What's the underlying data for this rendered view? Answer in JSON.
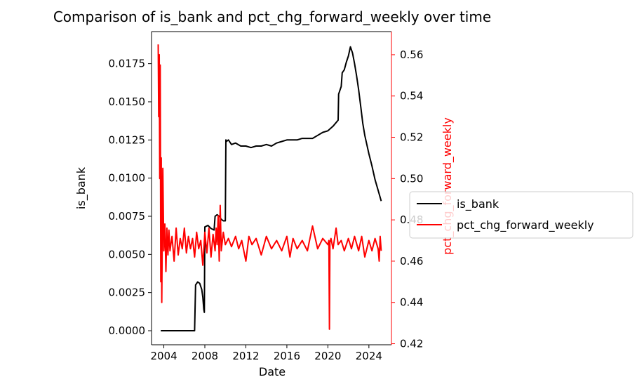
{
  "chart_data": {
    "type": "line",
    "title": "Comparison of is_bank and pct_chg_forward_weekly over time",
    "xlabel": "Date",
    "ylabel_left": "is_bank",
    "ylabel_right": "pct_chg_forward_weekly",
    "xlim": [
      2002.8,
      2026.2
    ],
    "ylim_left": [
      -0.00092,
      0.0196
    ],
    "ylim_right": [
      0.4195,
      0.5712
    ],
    "x_ticks": [
      "2004",
      "2008",
      "2012",
      "2016",
      "2020",
      "2024"
    ],
    "x_tick_values": [
      2004,
      2008,
      2012,
      2016,
      2020,
      2024
    ],
    "y_left_ticks": [
      "0.0000",
      "0.0025",
      "0.0050",
      "0.0075",
      "0.0100",
      "0.0125",
      "0.0150",
      "0.0175"
    ],
    "y_left_tick_values": [
      0,
      0.0025,
      0.005,
      0.0075,
      0.01,
      0.0125,
      0.015,
      0.0175
    ],
    "y_right_ticks": [
      "0.42",
      "0.44",
      "0.46",
      "0.48",
      "0.50",
      "0.52",
      "0.54",
      "0.56"
    ],
    "y_right_tick_values": [
      0.42,
      0.44,
      0.46,
      0.48,
      0.5,
      0.52,
      0.54,
      0.56
    ],
    "grid": false,
    "legend_position": "right-outside",
    "series": [
      {
        "name": "is_bank",
        "axis": "left",
        "color": "#000000",
        "x": [
          2003.7,
          2004.5,
          2005.5,
          2006.5,
          2007.0,
          2007.1,
          2007.3,
          2007.5,
          2007.7,
          2007.8,
          2007.9,
          2007.95,
          2008.0,
          2008.3,
          2008.6,
          2008.9,
          2009.0,
          2009.2,
          2009.4,
          2009.6,
          2009.8,
          2010.0,
          2010.05,
          2010.1,
          2010.3,
          2010.6,
          2011.0,
          2011.5,
          2012.0,
          2012.5,
          2013.0,
          2013.5,
          2014.0,
          2014.5,
          2015.0,
          2015.5,
          2016.0,
          2016.5,
          2017.0,
          2017.5,
          2018.0,
          2018.5,
          2019.0,
          2019.5,
          2020.0,
          2020.5,
          2021.0,
          2021.05,
          2021.2,
          2021.3,
          2021.4,
          2021.6,
          2021.8,
          2022.0,
          2022.2,
          2022.4,
          2022.6,
          2022.8,
          2023.0,
          2023.2,
          2023.4,
          2023.6,
          2023.8,
          2024.0,
          2024.3,
          2024.6,
          2024.9,
          2025.2
        ],
        "values": [
          0.0,
          0.0,
          0.0,
          0.0,
          0.0,
          0.003,
          0.0032,
          0.0031,
          0.0027,
          0.0022,
          0.0014,
          0.0012,
          0.0068,
          0.0069,
          0.0067,
          0.0066,
          0.0075,
          0.0076,
          0.0075,
          0.0073,
          0.0072,
          0.0072,
          0.0125,
          0.0124,
          0.0125,
          0.0122,
          0.0123,
          0.0121,
          0.0121,
          0.012,
          0.0121,
          0.0121,
          0.0122,
          0.0121,
          0.0123,
          0.0124,
          0.0125,
          0.0125,
          0.0125,
          0.0126,
          0.0126,
          0.0126,
          0.0128,
          0.013,
          0.0131,
          0.0134,
          0.0138,
          0.0155,
          0.0158,
          0.016,
          0.0169,
          0.0171,
          0.0176,
          0.018,
          0.0186,
          0.0182,
          0.0175,
          0.0167,
          0.0158,
          0.0147,
          0.0136,
          0.0128,
          0.0122,
          0.0116,
          0.0108,
          0.0099,
          0.0092,
          0.0085
        ]
      },
      {
        "name": "pct_chg_forward_weekly",
        "axis": "right",
        "color": "#ff0000",
        "x": [
          2003.45,
          2003.5,
          2003.55,
          2003.6,
          2003.65,
          2003.7,
          2003.75,
          2003.8,
          2003.9,
          2004.0,
          2004.1,
          2004.2,
          2004.3,
          2004.4,
          2004.5,
          2004.6,
          2004.8,
          2005.0,
          2005.2,
          2005.4,
          2005.6,
          2005.8,
          2006.0,
          2006.2,
          2006.4,
          2006.6,
          2006.8,
          2007.0,
          2007.2,
          2007.4,
          2007.6,
          2007.8,
          2008.0,
          2008.2,
          2008.4,
          2008.6,
          2008.8,
          2009.0,
          2009.1,
          2009.2,
          2009.3,
          2009.4,
          2009.5,
          2009.6,
          2009.8,
          2010.0,
          2010.3,
          2010.6,
          2011.0,
          2011.3,
          2011.6,
          2012.0,
          2012.3,
          2012.6,
          2013.0,
          2013.5,
          2014.0,
          2014.5,
          2015.0,
          2015.5,
          2016.0,
          2016.3,
          2016.6,
          2017.0,
          2017.5,
          2018.0,
          2018.5,
          2019.0,
          2019.5,
          2020.0,
          2020.1,
          2020.15,
          2020.2,
          2020.3,
          2020.5,
          2020.8,
          2021.0,
          2021.3,
          2021.6,
          2022.0,
          2022.3,
          2022.6,
          2023.0,
          2023.3,
          2023.6,
          2024.0,
          2024.3,
          2024.6,
          2024.9,
          2025.0,
          2025.1,
          2025.2
        ],
        "values": [
          0.565,
          0.53,
          0.56,
          0.5,
          0.555,
          0.45,
          0.51,
          0.44,
          0.505,
          0.465,
          0.478,
          0.455,
          0.476,
          0.463,
          0.475,
          0.465,
          0.472,
          0.46,
          0.476,
          0.463,
          0.471,
          0.466,
          0.476,
          0.464,
          0.472,
          0.466,
          0.471,
          0.462,
          0.474,
          0.466,
          0.47,
          0.458,
          0.474,
          0.464,
          0.476,
          0.462,
          0.473,
          0.465,
          0.476,
          0.468,
          0.482,
          0.46,
          0.487,
          0.465,
          0.474,
          0.468,
          0.471,
          0.467,
          0.472,
          0.466,
          0.47,
          0.46,
          0.472,
          0.468,
          0.471,
          0.463,
          0.472,
          0.466,
          0.47,
          0.465,
          0.472,
          0.462,
          0.471,
          0.466,
          0.47,
          0.465,
          0.477,
          0.466,
          0.471,
          0.468,
          0.47,
          0.427,
          0.469,
          0.471,
          0.466,
          0.476,
          0.468,
          0.47,
          0.465,
          0.471,
          0.466,
          0.472,
          0.465,
          0.472,
          0.462,
          0.47,
          0.465,
          0.471,
          0.466,
          0.46,
          0.472,
          0.465
        ]
      }
    ]
  }
}
